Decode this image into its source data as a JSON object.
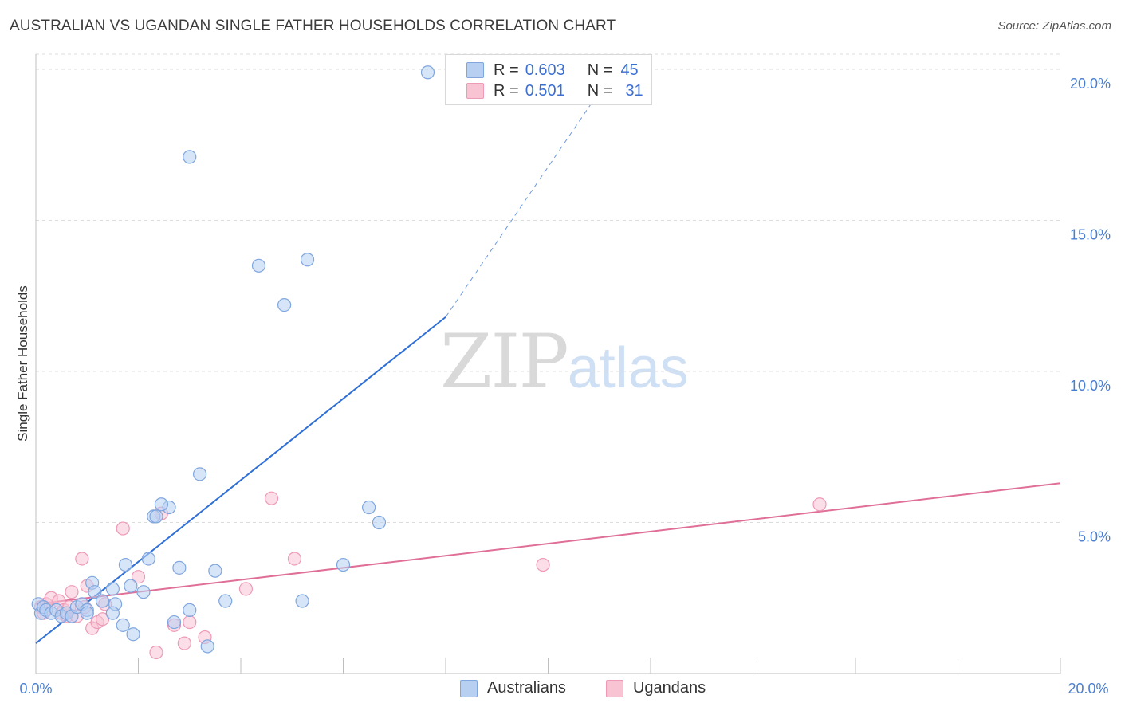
{
  "title": "AUSTRALIAN VS UGANDAN SINGLE FATHER HOUSEHOLDS CORRELATION CHART",
  "source": "Source: ZipAtlas.com",
  "watermark": {
    "part1": "ZIP",
    "part2": "atlas"
  },
  "legend_top": [
    {
      "r_label": "R =",
      "r_value": "0.603",
      "n_label": "N =",
      "n_value": "45"
    },
    {
      "r_label": "R =",
      "r_value": "0.501",
      "n_label": "N =",
      "n_value": "31"
    }
  ],
  "legend_bottom": [
    "Australians",
    "Ugandans"
  ],
  "colors": {
    "australians_fill": "#b7d0f2",
    "australians_stroke": "#7fa6de",
    "australians_line": "#2f6fd6",
    "ugandans_fill": "#f8c3d3",
    "ugandans_stroke": "#ee9ab6",
    "ugandans_line": "#e06f98",
    "tick_label": "#4a7fd0",
    "grid": "#dcdcdc"
  },
  "chart_data": {
    "type": "scatter",
    "title": "AUSTRALIAN VS UGANDAN SINGLE FATHER HOUSEHOLDS CORRELATION CHART",
    "xlabel": "",
    "ylabel": "Single Father Households",
    "xlim": [
      0,
      20
    ],
    "ylim": [
      0,
      20.5
    ],
    "x_tick_labels": [
      "0.0%",
      "20.0%"
    ],
    "y_ticks": [
      {
        "value": 5,
        "label": "5.0%"
      },
      {
        "value": 10,
        "label": "10.0%"
      },
      {
        "value": 15,
        "label": "15.0%"
      },
      {
        "value": 20,
        "label": "20.0%"
      }
    ],
    "grid": true,
    "legend_position": "top-center",
    "series": [
      {
        "name": "Australians",
        "R": 0.603,
        "N": 45,
        "trend": {
          "x0": 0,
          "y0": 1.0,
          "x1": 8.0,
          "y1": 11.8,
          "dashed_to_x": 11.5,
          "dashed_to_y": 20.5
        },
        "points": [
          [
            0.05,
            2.3
          ],
          [
            0.1,
            2.0
          ],
          [
            0.15,
            2.2
          ],
          [
            0.2,
            2.1
          ],
          [
            0.3,
            2.0
          ],
          [
            0.4,
            2.1
          ],
          [
            0.5,
            1.9
          ],
          [
            0.6,
            2.0
          ],
          [
            0.7,
            1.9
          ],
          [
            0.8,
            2.2
          ],
          [
            0.9,
            2.3
          ],
          [
            1.0,
            2.1
          ],
          [
            1.1,
            3.0
          ],
          [
            1.15,
            2.7
          ],
          [
            1.3,
            2.4
          ],
          [
            1.5,
            2.8
          ],
          [
            1.55,
            2.3
          ],
          [
            1.7,
            1.6
          ],
          [
            1.75,
            3.6
          ],
          [
            1.85,
            2.9
          ],
          [
            1.9,
            1.3
          ],
          [
            2.1,
            2.7
          ],
          [
            2.2,
            3.8
          ],
          [
            2.3,
            5.2
          ],
          [
            2.6,
            5.5
          ],
          [
            2.7,
            1.7
          ],
          [
            2.8,
            3.5
          ],
          [
            3.0,
            2.1
          ],
          [
            3.2,
            6.6
          ],
          [
            3.35,
            0.9
          ],
          [
            3.5,
            3.4
          ],
          [
            3.7,
            2.4
          ],
          [
            2.35,
            5.2
          ],
          [
            2.45,
            5.6
          ],
          [
            3.0,
            17.1
          ],
          [
            4.35,
            13.5
          ],
          [
            4.85,
            12.2
          ],
          [
            5.3,
            13.7
          ],
          [
            5.2,
            2.4
          ],
          [
            6.0,
            3.6
          ],
          [
            6.5,
            5.5
          ],
          [
            6.7,
            5.0
          ],
          [
            7.65,
            19.9
          ],
          [
            1.0,
            2.0
          ],
          [
            1.5,
            2.0
          ]
        ]
      },
      {
        "name": "Ugandans",
        "R": 0.501,
        "N": 31,
        "trend": {
          "x0": 0,
          "y0": 2.3,
          "x1": 20.0,
          "y1": 6.3
        },
        "points": [
          [
            0.1,
            2.2
          ],
          [
            0.2,
            2.3
          ],
          [
            0.3,
            2.5
          ],
          [
            0.45,
            2.4
          ],
          [
            0.5,
            2.0
          ],
          [
            0.6,
            1.9
          ],
          [
            0.7,
            2.7
          ],
          [
            0.8,
            1.9
          ],
          [
            0.9,
            3.8
          ],
          [
            0.95,
            2.2
          ],
          [
            1.0,
            2.9
          ],
          [
            1.1,
            1.5
          ],
          [
            1.2,
            1.7
          ],
          [
            1.3,
            1.8
          ],
          [
            1.35,
            2.3
          ],
          [
            1.7,
            4.8
          ],
          [
            2.0,
            3.2
          ],
          [
            2.35,
            0.7
          ],
          [
            2.45,
            5.3
          ],
          [
            2.7,
            1.6
          ],
          [
            2.9,
            1.0
          ],
          [
            3.0,
            1.7
          ],
          [
            3.3,
            1.2
          ],
          [
            4.1,
            2.8
          ],
          [
            4.6,
            5.8
          ],
          [
            5.05,
            3.8
          ],
          [
            9.9,
            3.6
          ],
          [
            15.3,
            5.6
          ],
          [
            0.15,
            2.0
          ],
          [
            0.55,
            2.1
          ],
          [
            0.65,
            2.2
          ]
        ]
      }
    ]
  }
}
